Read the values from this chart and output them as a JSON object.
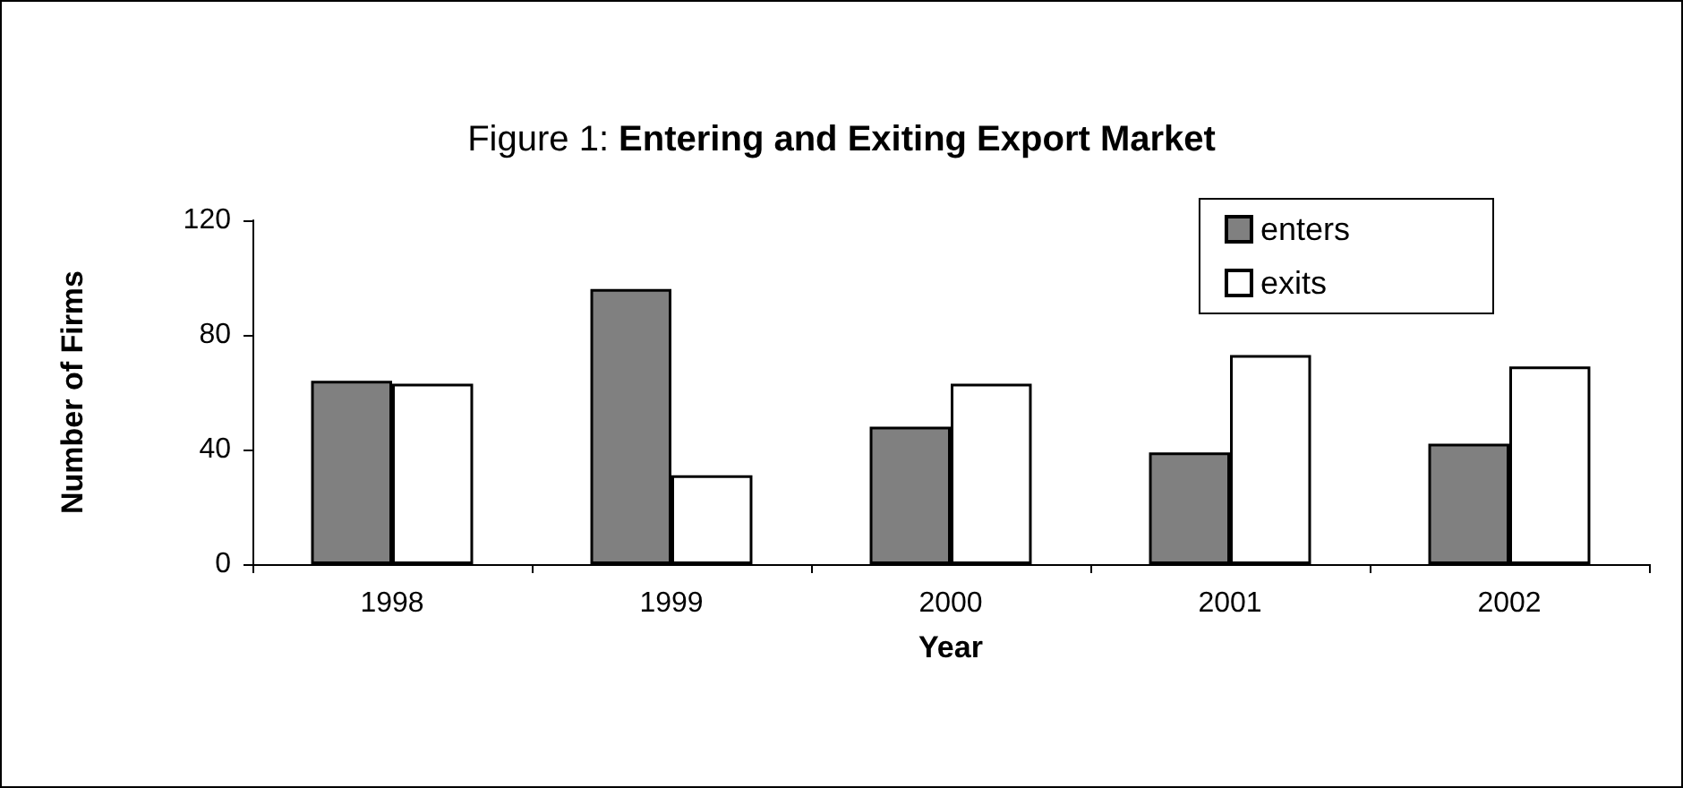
{
  "chart_data": {
    "type": "bar",
    "title": "Figure 1: Entering and Exiting Export Market",
    "xlabel": "Year",
    "ylabel": "Number of Firms",
    "categories": [
      "1998",
      "1999",
      "2000",
      "2001",
      "2002"
    ],
    "series": [
      {
        "name": "enters",
        "color": "#808080",
        "values": [
          64,
          96,
          48,
          39,
          42
        ]
      },
      {
        "name": "exits",
        "color": "#ffffff",
        "values": [
          63,
          31,
          63,
          73,
          69
        ]
      }
    ],
    "ylim": [
      0,
      120
    ],
    "yticks": [
      0,
      40,
      80,
      120
    ],
    "grid": false,
    "legend": "top right"
  }
}
